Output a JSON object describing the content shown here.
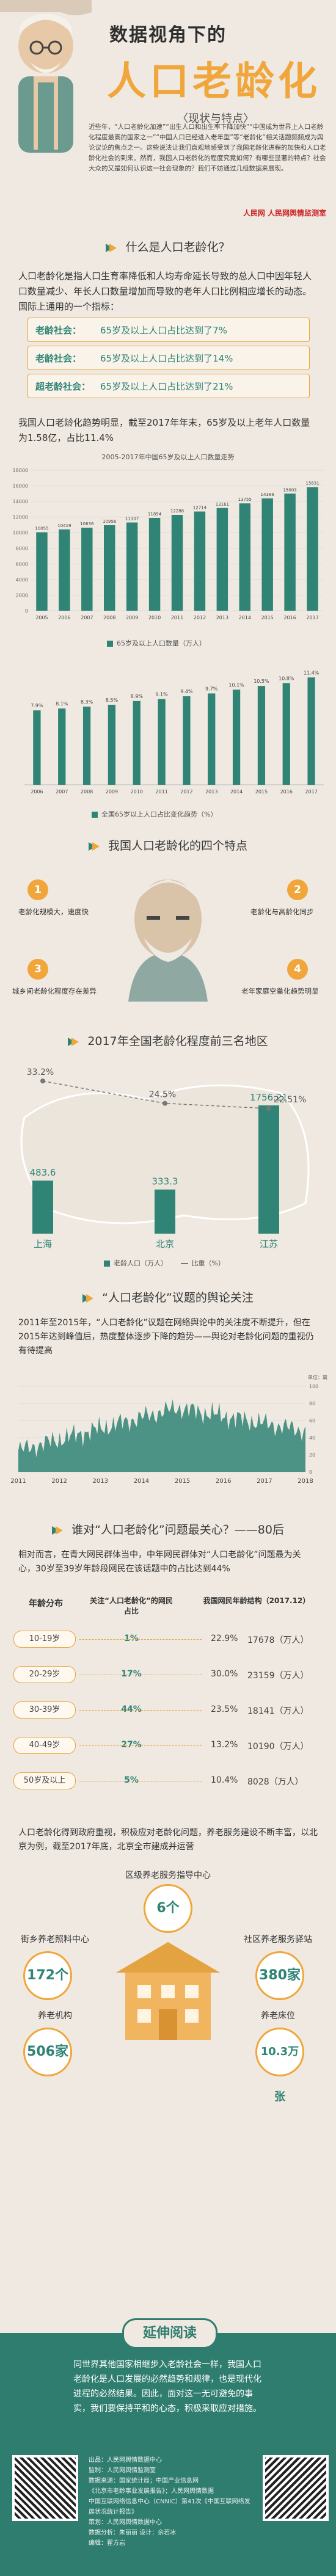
{
  "header": {
    "title_top": "数据视角下的",
    "title_main": "人口老龄化",
    "subtitle": "〈现状与特点〉",
    "intro_text": "近些年，“人口老龄化加速”“出生人口和出生率下降加快”“中国成为世界上人口老龄化程度最高的国家之一”“中国人口已经进入老年型”等“老龄化”相关话题频频成为舆论议论的焦点之一。这些说法让我们直观地感受到了我国老龄化进程的加快和人口老龄化社会的到来。然而，我国人口老龄化的程度究竟如何？有哪些显著的特点？社会大众的又是如何认识这一社会现象的？我们不妨通过几组数据来展现。",
    "logos": "人民网 人民网舆情监测室"
  },
  "section1": {
    "title": "什么是人口老龄化？",
    "paragraph": "人口老龄化是指人口生育率降低和人均寿命延长导致的总人口中因年轻人口数量减少、年长人口数量增加而导致的老年人口比例相应增长的动态。国际上通用的一个指标：",
    "criteria": [
      {
        "key": "老龄社会：",
        "value": "65岁及以上人口占比达到了7%"
      },
      {
        "key": "老龄社会：",
        "value": "65岁及以上人口占比达到了14%"
      },
      {
        "key": "超老龄社会：",
        "value": "65岁及以上人口占比达到了21%"
      }
    ],
    "stat_paragraph": "我国人口老龄化趋势明显，截至2017年年末，65岁及以上老年人口数量为1.58亿，占比11.4%"
  },
  "chart_data": [
    {
      "type": "bar",
      "title": "2005-2017年中国65岁及以上人口数量走势",
      "categories": [
        "2005",
        "2006",
        "2007",
        "2008",
        "2009",
        "2010",
        "2011",
        "2012",
        "2013",
        "2014",
        "2015",
        "2016",
        "2017"
      ],
      "values": [
        10055,
        10419,
        10636,
        10956,
        11307,
        11894,
        12288,
        12714,
        13161,
        13755,
        14386,
        15003,
        15831
      ],
      "legend": "65岁及以上人口数量（万人）",
      "ylim": [
        0,
        18000
      ],
      "yticks": [
        0,
        2000,
        4000,
        6000,
        8000,
        10000,
        12000,
        14000,
        16000,
        18000
      ]
    },
    {
      "type": "bar",
      "categories": [
        "2006",
        "2007",
        "2008",
        "2009",
        "2010",
        "2011",
        "2012",
        "2013",
        "2014",
        "2015",
        "2016",
        "2017"
      ],
      "values": [
        7.9,
        8.1,
        8.3,
        8.5,
        8.9,
        9.1,
        9.4,
        9.7,
        10.1,
        10.5,
        10.8,
        11.4
      ],
      "labels": [
        "7.9%",
        "8.1%",
        "8.3%",
        "8.5%",
        "8.9%",
        "9.1%",
        "9.4%",
        "9.7%",
        "10.1%",
        "10.5%",
        "10.8%",
        "11.4%"
      ],
      "legend": "全国65岁以上人口占比变化趋势（%）",
      "ylim": [
        0,
        12
      ]
    },
    {
      "type": "bar",
      "title": "2017年全国老龄化程度前三名地区",
      "categories": [
        "上海",
        "北京",
        "江苏"
      ],
      "series": [
        {
          "name": "老龄人口（万人）",
          "values": [
            483.6,
            333.3,
            1756.21
          ]
        },
        {
          "name": "比重（%）",
          "values": [
            33.2,
            24.5,
            22.51
          ]
        }
      ],
      "labels_people": [
        "483.6",
        "333.3",
        "1756.21"
      ],
      "labels_share": [
        "33.2%",
        "24.5%",
        "22.51%"
      ]
    },
    {
      "type": "area",
      "title": "“人口老龄化”议题的舆论关注",
      "x": [
        "2011",
        "2012",
        "2013",
        "2014",
        "2015",
        "2016",
        "2017",
        "2018"
      ],
      "ylabel": "单位：篇",
      "yticks": [
        "100",
        "80",
        "60",
        "40",
        "20",
        "0"
      ]
    }
  ],
  "section2": {
    "title": "我国人口老龄化的四个特点",
    "features": [
      {
        "num": "1",
        "text": "老龄化规模大，速度快"
      },
      {
        "num": "2",
        "text": "老龄化与高龄化同步"
      },
      {
        "num": "3",
        "text": "城乡间老龄化程度存在差异"
      },
      {
        "num": "4",
        "text": "老年家庭空巢化趋势明显"
      }
    ]
  },
  "section3": {
    "title": "2017年全国老龄化程度前三名地区",
    "legend_people": "老龄人口（万人）",
    "legend_share": "比重（%）"
  },
  "section4": {
    "title": "“人口老龄化”议题的舆论关注",
    "paragraph": "2011年至2015年，“人口老龄化”议题在网络舆论中的关注度不断提升，但在2015年达到峰值后，热度整体逐步下降的趋势——舆论对老龄化问题的重视仍有待提高"
  },
  "section5": {
    "title": "谁对“人口老龄化”问题最关心？——80后",
    "paragraph": "相对而言，在青大网民群体当中，中年网民群体对“人口老龄化”问题最为关心，30岁至39岁年龄段网民在该话题中的占比达到44%",
    "headers": [
      "年龄分布",
      "关注“人口老龄化”的网民占比",
      "我国网民年龄结构（2017.12）"
    ],
    "rows": [
      {
        "age": "10-19岁",
        "share": "1%",
        "pct": "22.9%",
        "num": "17678（万人）"
      },
      {
        "age": "20-29岁",
        "share": "17%",
        "pct": "30.0%",
        "num": "23159（万人）"
      },
      {
        "age": "30-39岁",
        "share": "44%",
        "pct": "23.5%",
        "num": "18141（万人）"
      },
      {
        "age": "40-49岁",
        "share": "27%",
        "pct": "13.2%",
        "num": "10190（万人）"
      },
      {
        "age": "50岁及以上",
        "share": "5%",
        "pct": "10.4%",
        "num": "8028（万人）"
      }
    ],
    "up_label": "以下"
  },
  "section6": {
    "paragraph": "人口老龄化得到政府重视，积极应对老龄化问题，养老服务建设不断丰富，以北京为例，截至2017年底，北京全市建成并运营",
    "center_label": "区级养老服务指导中心",
    "center_value": "6个",
    "nodes": [
      {
        "label": "街乡养老照料中心",
        "value": "172个"
      },
      {
        "label": "社区养老服务驿站",
        "value": "380家"
      },
      {
        "label": "养老机构",
        "value": "506家"
      },
      {
        "label": "养老床位",
        "value": "10.3万张"
      }
    ]
  },
  "reading": {
    "title": "延伸阅读",
    "text": "同世界其他国家相继步入老龄社会一样，我国人口老龄化是人口发展的必然趋势和规律，也是现代化进程的必然结果。因此，面对这一无可避免的事实，我们要保持平和的心态，积极采取应对措施。",
    "footer_lines": [
      "出品：人民网舆情数据中心",
      "监制：人民网舆情监测室",
      "数据来源：国家统计局；中国产业信息网",
      "《北京市老龄事业发展报告》；人民网舆情数据",
      "中国互联网络信息中心（CNNIC）第41次《中国互联网络发展状况统计报告》",
      "策划：人民网舆情数据中心",
      "数据分析：朱丽丽 设计：余若冰",
      "编辑：翟方岩"
    ]
  }
}
